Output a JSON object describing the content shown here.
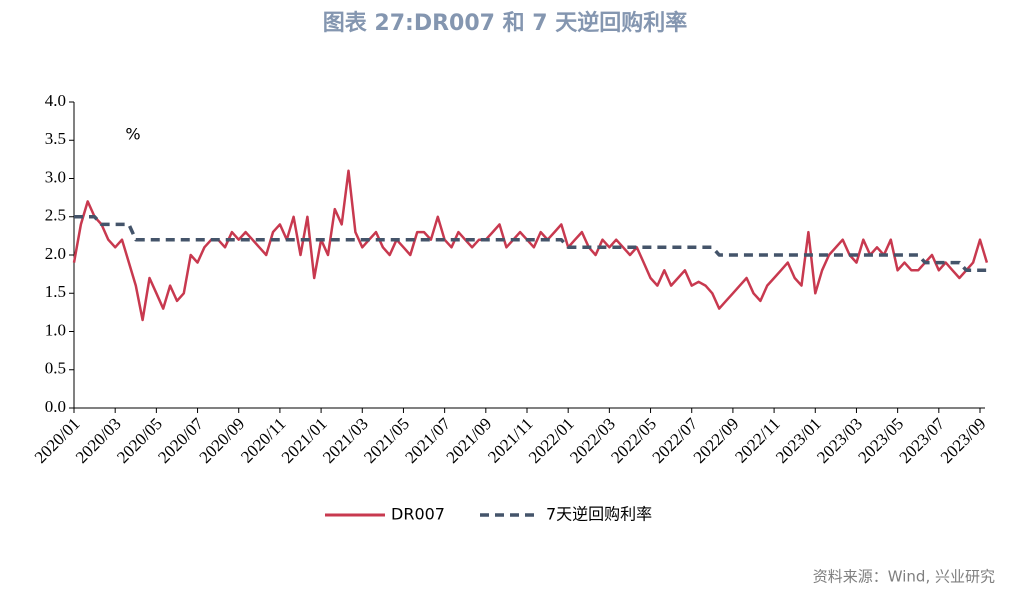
{
  "chart_data": {
    "type": "line",
    "title": "图表 27:DR007 和 7 天逆回购利率",
    "unit_label": "%",
    "source": "资料来源：Wind, 兴业研究",
    "categories": [
      "2020/01",
      null,
      null,
      null,
      null,
      null,
      "2020/03",
      null,
      null,
      null,
      null,
      null,
      "2020/05",
      null,
      null,
      null,
      null,
      null,
      "2020/07",
      null,
      null,
      null,
      null,
      null,
      "2020/09",
      null,
      null,
      null,
      null,
      null,
      "2020/11",
      null,
      null,
      null,
      null,
      null,
      "2021/01",
      null,
      null,
      null,
      null,
      null,
      "2021/03",
      null,
      null,
      null,
      null,
      null,
      "2021/05",
      null,
      null,
      null,
      null,
      null,
      "2021/07",
      null,
      null,
      null,
      null,
      null,
      "2021/09",
      null,
      null,
      null,
      null,
      null,
      "2021/11",
      null,
      null,
      null,
      null,
      null,
      "2022/01",
      null,
      null,
      null,
      null,
      null,
      "2022/03",
      null,
      null,
      null,
      null,
      null,
      "2022/05",
      null,
      null,
      null,
      null,
      null,
      "2022/07",
      null,
      null,
      null,
      null,
      null,
      "2022/09",
      null,
      null,
      null,
      null,
      null,
      "2022/11",
      null,
      null,
      null,
      null,
      null,
      "2023/01",
      null,
      null,
      null,
      null,
      null,
      "2023/03",
      null,
      null,
      null,
      null,
      null,
      "2023/05",
      null,
      null,
      null,
      null,
      null,
      "2023/07",
      null,
      null,
      null,
      null,
      null,
      "2023/09",
      null
    ],
    "series": [
      {
        "name": "DR007",
        "color": "#c8394f",
        "dash": false,
        "values": [
          1.9,
          2.4,
          2.7,
          2.5,
          2.4,
          2.2,
          2.1,
          2.2,
          1.9,
          1.6,
          1.15,
          1.7,
          1.5,
          1.3,
          1.6,
          1.4,
          1.5,
          2.0,
          1.9,
          2.1,
          2.2,
          2.2,
          2.1,
          2.3,
          2.2,
          2.3,
          2.2,
          2.1,
          2.0,
          2.3,
          2.4,
          2.2,
          2.5,
          2.0,
          2.5,
          1.7,
          2.2,
          2.0,
          2.6,
          2.4,
          3.1,
          2.3,
          2.1,
          2.2,
          2.3,
          2.1,
          2.0,
          2.2,
          2.1,
          2.0,
          2.3,
          2.3,
          2.2,
          2.5,
          2.2,
          2.1,
          2.3,
          2.2,
          2.1,
          2.2,
          2.2,
          2.3,
          2.4,
          2.1,
          2.2,
          2.3,
          2.2,
          2.1,
          2.3,
          2.2,
          2.3,
          2.4,
          2.1,
          2.2,
          2.3,
          2.1,
          2.0,
          2.2,
          2.1,
          2.2,
          2.1,
          2.0,
          2.1,
          1.9,
          1.7,
          1.6,
          1.8,
          1.6,
          1.7,
          1.8,
          1.6,
          1.65,
          1.6,
          1.5,
          1.3,
          1.4,
          1.5,
          1.6,
          1.7,
          1.5,
          1.4,
          1.6,
          1.7,
          1.8,
          1.9,
          1.7,
          1.6,
          2.3,
          1.5,
          1.8,
          2.0,
          2.1,
          2.2,
          2.0,
          1.9,
          2.2,
          2.0,
          2.1,
          2.0,
          2.2,
          1.8,
          1.9,
          1.8,
          1.8,
          1.9,
          2.0,
          1.8,
          1.9,
          1.8,
          1.7,
          1.8,
          1.9,
          2.2,
          1.9
        ]
      },
      {
        "name": "7天逆回购利率",
        "color": "#44546a",
        "dash": true,
        "values": [
          2.5,
          2.5,
          2.5,
          2.5,
          2.4,
          2.4,
          2.4,
          2.4,
          2.4,
          2.2,
          2.2,
          2.2,
          2.2,
          2.2,
          2.2,
          2.2,
          2.2,
          2.2,
          2.2,
          2.2,
          2.2,
          2.2,
          2.2,
          2.2,
          2.2,
          2.2,
          2.2,
          2.2,
          2.2,
          2.2,
          2.2,
          2.2,
          2.2,
          2.2,
          2.2,
          2.2,
          2.2,
          2.2,
          2.2,
          2.2,
          2.2,
          2.2,
          2.2,
          2.2,
          2.2,
          2.2,
          2.2,
          2.2,
          2.2,
          2.2,
          2.2,
          2.2,
          2.2,
          2.2,
          2.2,
          2.2,
          2.2,
          2.2,
          2.2,
          2.2,
          2.2,
          2.2,
          2.2,
          2.2,
          2.2,
          2.2,
          2.2,
          2.2,
          2.2,
          2.2,
          2.2,
          2.2,
          2.1,
          2.1,
          2.1,
          2.1,
          2.1,
          2.1,
          2.1,
          2.1,
          2.1,
          2.1,
          2.1,
          2.1,
          2.1,
          2.1,
          2.1,
          2.1,
          2.1,
          2.1,
          2.1,
          2.1,
          2.1,
          2.1,
          2.0,
          2.0,
          2.0,
          2.0,
          2.0,
          2.0,
          2.0,
          2.0,
          2.0,
          2.0,
          2.0,
          2.0,
          2.0,
          2.0,
          2.0,
          2.0,
          2.0,
          2.0,
          2.0,
          2.0,
          2.0,
          2.0,
          2.0,
          2.0,
          2.0,
          2.0,
          2.0,
          2.0,
          2.0,
          2.0,
          1.9,
          1.9,
          1.9,
          1.9,
          1.9,
          1.9,
          1.8,
          1.8,
          1.8,
          1.8
        ]
      }
    ],
    "ylim": [
      0,
      4
    ],
    "yticks": [
      {
        "value": 0,
        "label": "0.0"
      },
      0.5,
      {
        "value": 1,
        "label": "1.0"
      },
      1.5,
      {
        "value": 2,
        "label": "2.0"
      },
      2.5,
      {
        "value": 3,
        "label": "3.0"
      },
      3.5,
      {
        "value": 4,
        "label": "4.0"
      }
    ],
    "legend": "bottom"
  }
}
